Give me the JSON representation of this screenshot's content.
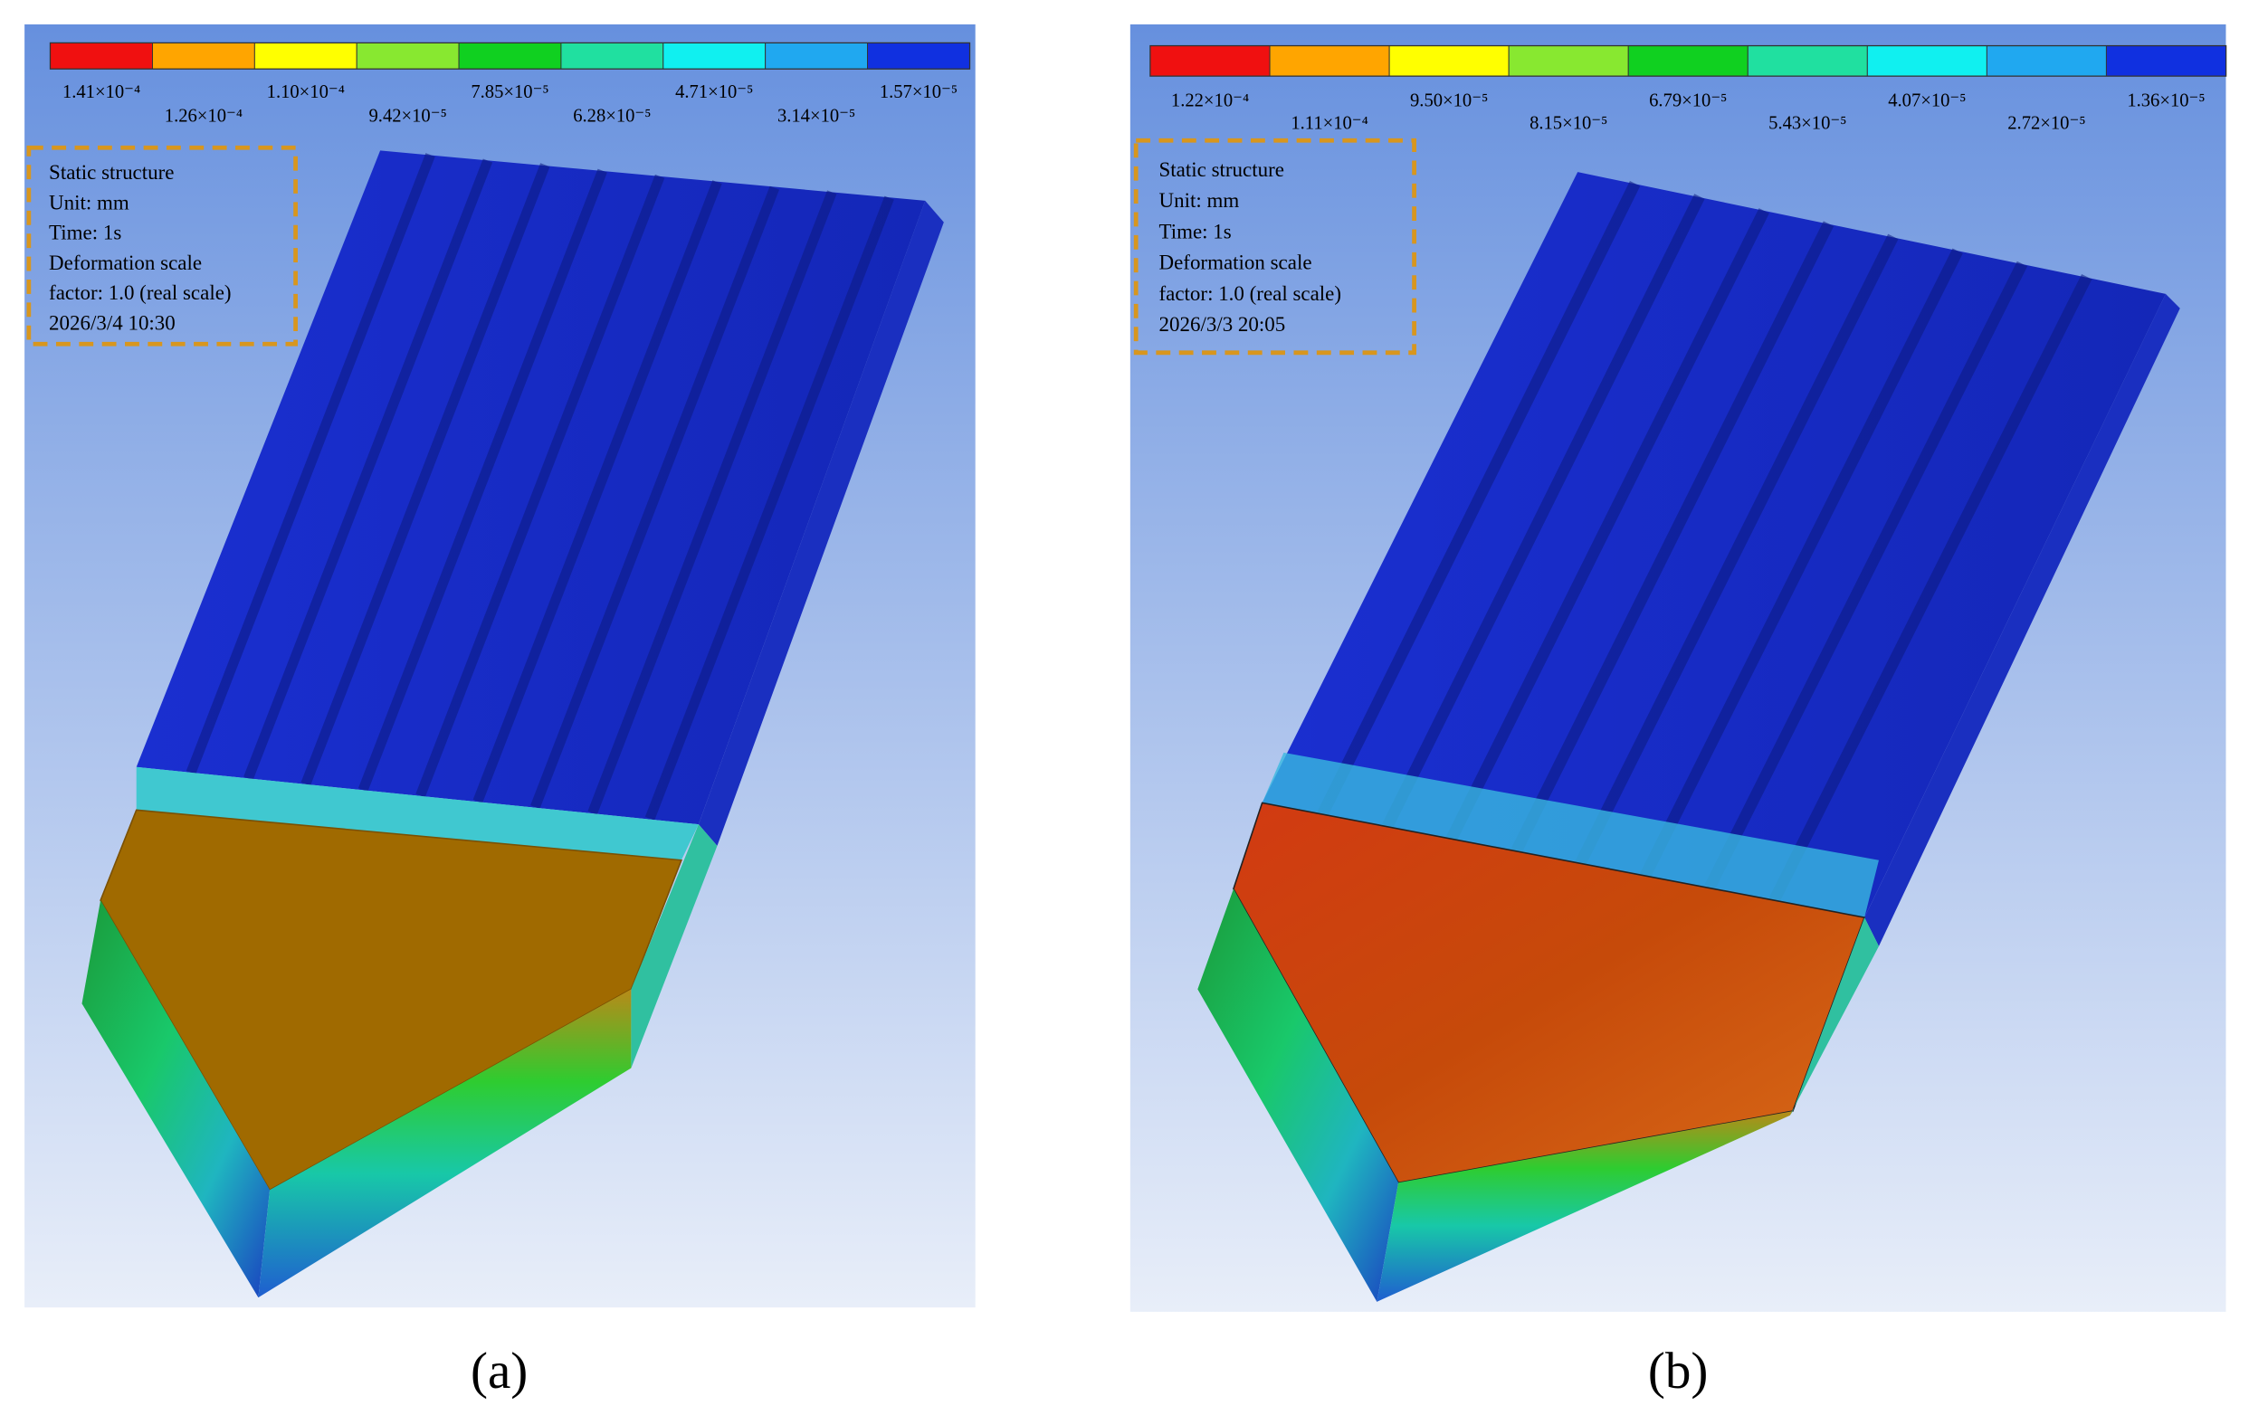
{
  "panels": [
    {
      "label": "(a)",
      "legend": [
        "1.41×10⁻⁴",
        "1.26×10⁻⁴",
        "1.10×10⁻⁴",
        "9.42×10⁻⁵",
        "7.85×10⁻⁵",
        "6.28×10⁻⁵",
        "4.71×10⁻⁵",
        "3.14×10⁻⁵",
        "1.57×10⁻⁵"
      ],
      "info": [
        "Static structure",
        "Unit: mm",
        "Time: 1s",
        "Deformation scale",
        "factor: 1.0 (real scale)",
        "2026/3/4 10:30"
      ]
    },
    {
      "label": "(b)",
      "legend": [
        "1.22×10⁻⁴",
        "1.11×10⁻⁴",
        "9.50×10⁻⁵",
        "8.15×10⁻⁵",
        "6.79×10⁻⁵",
        "5.43×10⁻⁵",
        "4.07×10⁻⁵",
        "2.72×10⁻⁵",
        "1.36×10⁻⁵"
      ],
      "info": [
        "Static structure",
        "Unit: mm",
        "Time: 1s",
        "Deformation scale",
        "factor: 1.0 (real scale)",
        "2026/3/3 20:05"
      ]
    }
  ]
}
